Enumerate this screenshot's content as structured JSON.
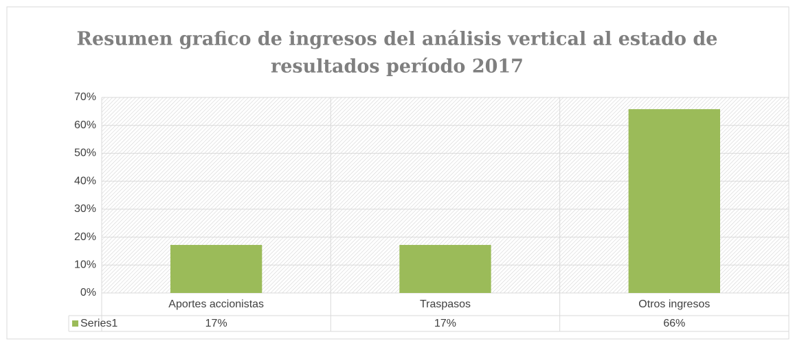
{
  "chart_data": {
    "type": "bar",
    "title": [
      "Resumen grafico de ingresos del análisis vertical al estado de",
      "resultados período 2017"
    ],
    "categories": [
      "Aportes accionistas",
      "Traspasos",
      "Otros ingresos"
    ],
    "series": [
      {
        "name": "Series1",
        "color": "#9bbb59",
        "values": [
          17.2,
          17.2,
          65.8
        ],
        "value_labels": [
          "17%",
          "17%",
          "66%"
        ]
      }
    ],
    "ylim": [
      0,
      70
    ],
    "yticks": [
      {
        "value": 0,
        "label": "0%"
      },
      {
        "value": 10,
        "label": "10%"
      },
      {
        "value": 20,
        "label": "20%"
      },
      {
        "value": 30,
        "label": "30%"
      },
      {
        "value": 40,
        "label": "40%"
      },
      {
        "value": 50,
        "label": "50%"
      },
      {
        "value": 60,
        "label": "60%"
      },
      {
        "value": 70,
        "label": "70%"
      }
    ],
    "grid": true
  }
}
